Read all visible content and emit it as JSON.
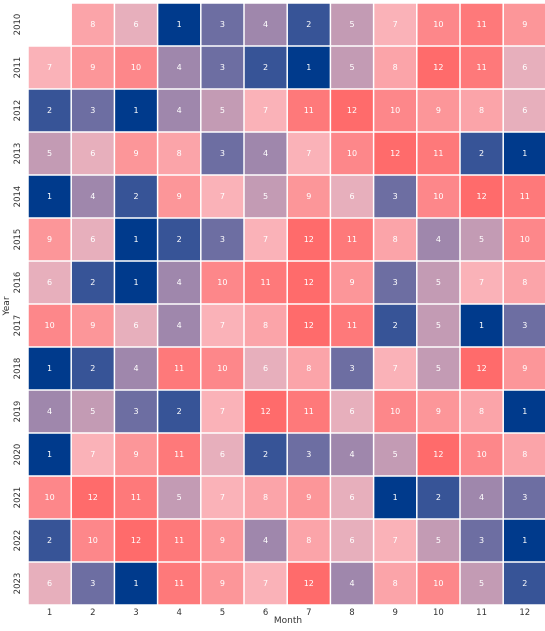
{
  "chart_data": {
    "type": "heatmap",
    "title": "",
    "xlabel": "Month",
    "ylabel": "Year",
    "x_categories": [
      "1",
      "2",
      "3",
      "4",
      "5",
      "6",
      "7",
      "8",
      "9",
      "10",
      "11",
      "12"
    ],
    "y_categories": [
      "2010",
      "2011",
      "2012",
      "2013",
      "2014",
      "2015",
      "2016",
      "2017",
      "2018",
      "2019",
      "2020",
      "2021",
      "2022",
      "2023"
    ],
    "values": [
      [
        null,
        8,
        6,
        1,
        3,
        4,
        2,
        5,
        7,
        10,
        11,
        9
      ],
      [
        7,
        9,
        10,
        4,
        3,
        2,
        1,
        5,
        8,
        12,
        11,
        6
      ],
      [
        2,
        3,
        1,
        4,
        5,
        7,
        11,
        12,
        10,
        9,
        8,
        6
      ],
      [
        5,
        6,
        9,
        8,
        3,
        4,
        7,
        10,
        12,
        11,
        2,
        1
      ],
      [
        1,
        4,
        2,
        9,
        7,
        5,
        9,
        6,
        3,
        10,
        12,
        11
      ],
      [
        9,
        6,
        1,
        2,
        3,
        7,
        12,
        11,
        8,
        4,
        5,
        10
      ],
      [
        6,
        2,
        1,
        4,
        10,
        11,
        12,
        9,
        3,
        5,
        7,
        8
      ],
      [
        10,
        9,
        6,
        4,
        7,
        8,
        12,
        11,
        2,
        5,
        1,
        3
      ],
      [
        1,
        2,
        4,
        11,
        10,
        6,
        8,
        3,
        7,
        5,
        12,
        9
      ],
      [
        4,
        5,
        3,
        2,
        7,
        12,
        11,
        6,
        10,
        9,
        8,
        1
      ],
      [
        1,
        7,
        9,
        11,
        6,
        2,
        3,
        4,
        5,
        12,
        10,
        8
      ],
      [
        10,
        12,
        11,
        5,
        7,
        8,
        9,
        6,
        1,
        2,
        4,
        3
      ],
      [
        2,
        10,
        12,
        11,
        9,
        4,
        8,
        6,
        7,
        5,
        3,
        1
      ],
      [
        6,
        3,
        1,
        11,
        9,
        7,
        12,
        4,
        8,
        10,
        5,
        2
      ]
    ],
    "value_range": [
      1,
      12
    ],
    "colormap": {
      "low": "#003a8c",
      "mid": "#f9b9c0",
      "high": "#ff6b6b"
    },
    "cell_label_color": "#ffffff",
    "grid": false,
    "colorbar": false
  }
}
